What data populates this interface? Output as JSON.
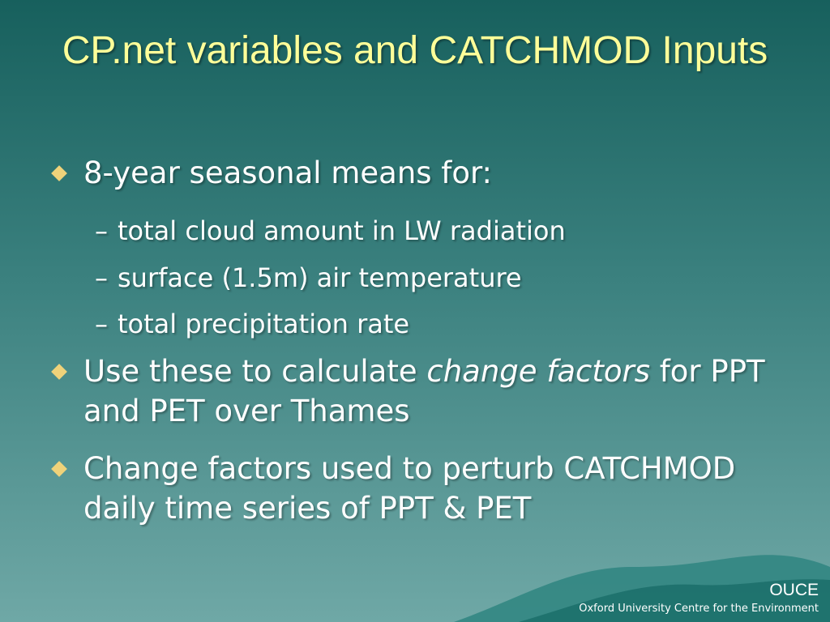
{
  "title": "CP.net variables and CATCHMOD Inputs",
  "bullets": [
    {
      "text": "8-year seasonal means for:",
      "subitems": [
        "total cloud amount in LW radiation",
        "surface (1.5m) air temperature",
        "total precipitation rate"
      ]
    },
    {
      "parts": [
        "Use these to calculate ",
        "change factors",
        " for PPT and PET over Thames"
      ]
    },
    {
      "text": "Change factors used to perturb CATCHMOD daily time series of PPT & PET"
    }
  ],
  "footer": {
    "org": "OUCE",
    "name": "Oxford University Centre for the Environment"
  }
}
